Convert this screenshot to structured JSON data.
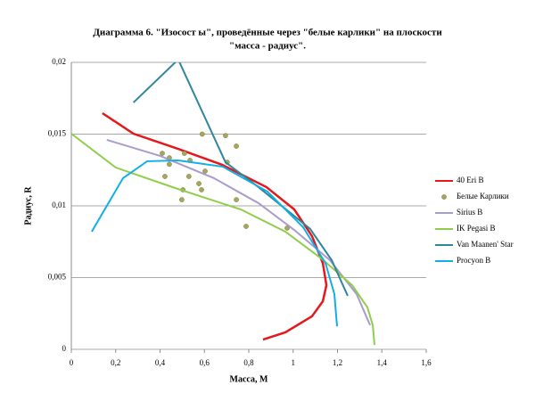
{
  "chart_data": {
    "type": "line",
    "title": [
      "Диаграмма 6. \"Изосост ы\", проведённые через \"белые карлики\" на плоскости",
      "\"масса - радиус\"."
    ],
    "x_label": "Масса, M",
    "y_label": "Радиус, R",
    "xlim": [
      0,
      1.6
    ],
    "ylim": [
      0,
      0.02
    ],
    "xticks": [
      0,
      {
        "value": 0.2,
        "label": "0,2"
      },
      {
        "value": 0.4,
        "label": "0,4"
      },
      {
        "value": 0.6,
        "label": "0,6"
      },
      {
        "value": 0.8,
        "label": "0,8"
      },
      1,
      {
        "value": 1.2,
        "label": "1,2"
      },
      {
        "value": 1.4,
        "label": "1,4"
      },
      {
        "value": 1.6,
        "label": "1,6"
      }
    ],
    "yticks": [
      0,
      {
        "value": 0.005,
        "label": "0,005"
      },
      {
        "value": 0.01,
        "label": "0,01"
      },
      {
        "value": 0.015,
        "label": "0,015"
      },
      {
        "value": 0.02,
        "label": "0,02"
      }
    ],
    "grid": true,
    "legend": "right",
    "series": [
      {
        "name": "40 Eri B",
        "color": "#e3191c",
        "x": [
          0.14,
          0.28,
          0.48,
          0.68,
          0.88,
          1.005,
          1.085,
          1.134,
          1.15,
          1.134,
          1.085,
          0.965,
          0.864
        ],
        "values": [
          0.01646,
          0.01503,
          0.01398,
          0.01286,
          0.0113,
          0.00975,
          0.00789,
          0.006,
          0.00447,
          0.00335,
          0.0023,
          0.00118,
          0.00068
        ]
      },
      {
        "name": "Белые Карлики",
        "type": "scatter",
        "color": "#a6a65c",
        "x": [
          0.59,
          0.695,
          0.744,
          0.41,
          0.442,
          0.51,
          0.535,
          0.442,
          0.703,
          0.603,
          0.422,
          0.53,
          0.575,
          0.503,
          0.587,
          0.498,
          0.744,
          0.788,
          0.973
        ],
        "values": [
          0.015,
          0.0149,
          0.01416,
          0.01366,
          0.01335,
          0.01366,
          0.01317,
          0.0129,
          0.01304,
          0.01242,
          0.01205,
          0.01205,
          0.01155,
          0.01112,
          0.01112,
          0.01043,
          0.01043,
          0.00857,
          0.00845
        ]
      },
      {
        "name": "Sirius B",
        "color": "#a99bcb",
        "x": [
          0.16,
          0.4,
          0.643,
          0.844,
          1.005,
          1.166,
          1.286,
          1.347
        ],
        "values": [
          0.0146,
          0.01348,
          0.01193,
          0.01019,
          0.00832,
          0.00621,
          0.00385,
          0.00168
        ]
      },
      {
        "name": "IK Pegasi B",
        "color": "#8fce4a",
        "x": [
          0,
          0.2,
          0.48,
          0.764,
          0.965,
          1.126,
          1.266,
          1.335,
          1.359,
          1.367
        ],
        "values": [
          0.01503,
          0.01267,
          0.01118,
          0.00975,
          0.0082,
          0.00634,
          0.00447,
          0.00292,
          0.00168,
          0.00031
        ]
      },
      {
        "name": "Van Maanen' Star",
        "color": "#31859c",
        "x": [
          0.28,
          0.482,
          0.695,
          0.844,
          1.077,
          1.174,
          1.246
        ],
        "values": [
          0.0172,
          0.0202,
          0.01304,
          0.0113,
          0.00839,
          0.00621,
          0.00373
        ]
      },
      {
        "name": "Procyon B",
        "color": "#12aee8",
        "x": [
          0.092,
          0.233,
          0.342,
          0.482,
          0.683,
          0.884,
          1.045,
          1.146,
          1.186,
          1.198
        ],
        "values": [
          0.0082,
          0.01193,
          0.01311,
          0.01317,
          0.01273,
          0.011,
          0.00851,
          0.006,
          0.00385,
          0.0016
        ]
      }
    ]
  }
}
